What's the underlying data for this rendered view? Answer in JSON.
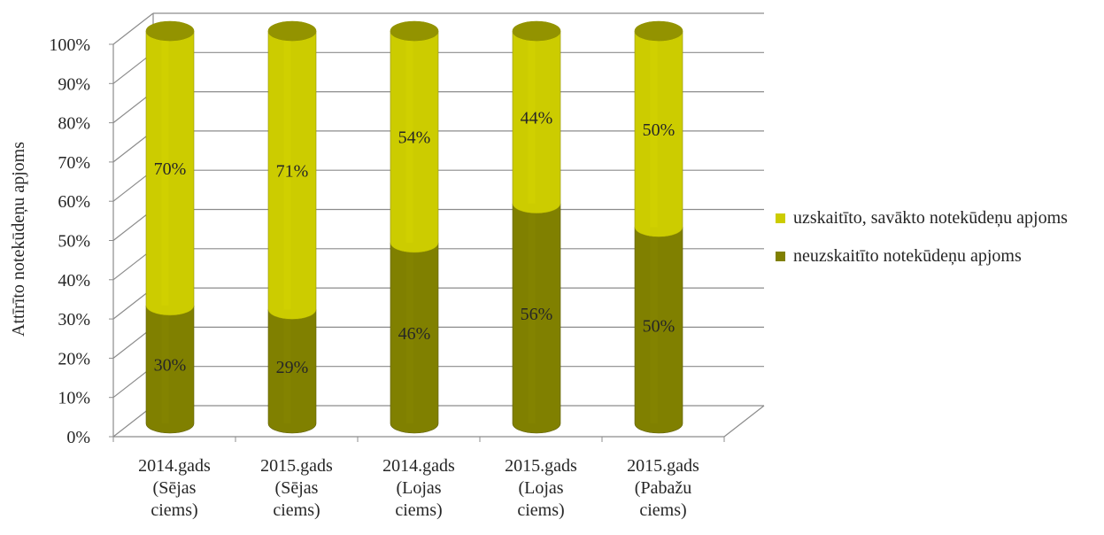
{
  "chart_data": {
    "type": "bar",
    "stacked": true,
    "percent_stacked": true,
    "style": "3d-cylinder",
    "categories": [
      [
        "2014.gads",
        "(Sējas",
        "ciems)"
      ],
      [
        "2015.gads",
        "(Sējas",
        "ciems)"
      ],
      [
        "2014.gads",
        "(Lojas",
        "ciems)"
      ],
      [
        "2015.gads",
        "(Lojas",
        "ciems)"
      ],
      [
        "2015.gads",
        "(Pabažu",
        "ciems)"
      ]
    ],
    "series": [
      {
        "name": "neuzskaitīto notekūdeņu apjoms",
        "values": [
          30,
          29,
          46,
          56,
          50
        ],
        "labels": [
          "30%",
          "29%",
          "46%",
          "56%",
          "50%"
        ],
        "color": "#808000"
      },
      {
        "name": "uzskaitīto, savākto notekūdeņu apjoms",
        "values": [
          70,
          71,
          54,
          44,
          50
        ],
        "labels": [
          "70%",
          "71%",
          "54%",
          "44%",
          "50%"
        ],
        "color": "#CCCC00"
      }
    ],
    "ylabel": "Attīrīto notekūdeņu apjoms",
    "xlabel": "",
    "ylim": [
      0,
      100
    ],
    "yticks": [
      "0%",
      "10%",
      "20%",
      "30%",
      "40%",
      "50%",
      "60%",
      "70%",
      "80%",
      "90%",
      "100%"
    ],
    "grid": true,
    "legend_position": "right"
  }
}
